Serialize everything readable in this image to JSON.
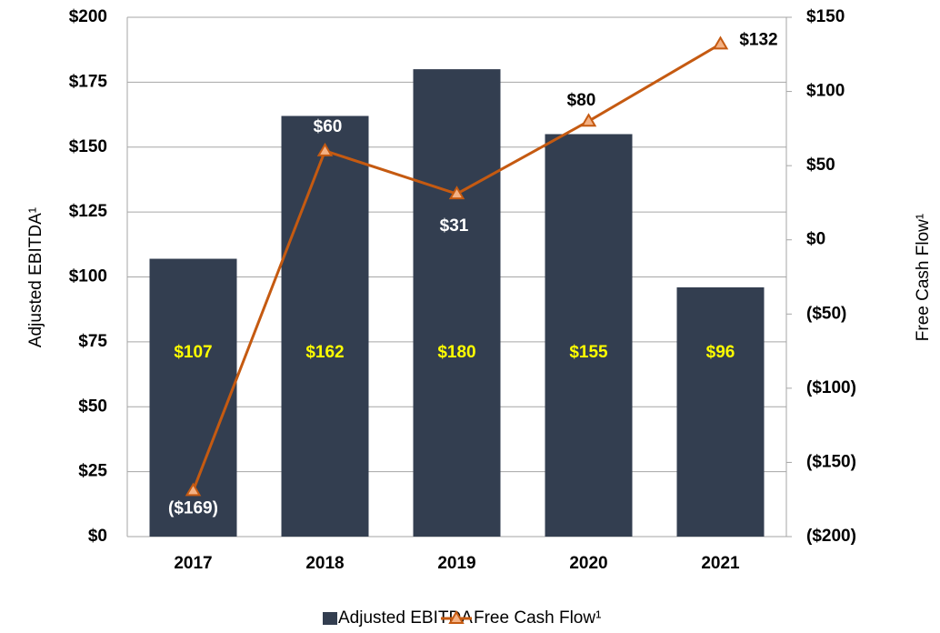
{
  "chart_data": {
    "type": "bar",
    "categories": [
      "2017",
      "2018",
      "2019",
      "2020",
      "2021"
    ],
    "series": [
      {
        "name": "Adjusted EBITDA",
        "type": "bar",
        "color": "#333e50",
        "values": [
          107,
          162,
          180,
          155,
          96
        ],
        "value_labels": [
          "$107",
          "$162",
          "$180",
          "$155",
          "$96"
        ]
      },
      {
        "name": "Free Cash Flow¹",
        "type": "line",
        "axis": "y2",
        "color": "#c55a11",
        "values": [
          -169,
          60,
          31,
          80,
          132
        ],
        "value_labels": [
          "($169)",
          "$60",
          "$31",
          "$80",
          "$132"
        ]
      }
    ],
    "ylabel": "Adjusted EBITDA¹",
    "y2label": "Free Cash Flow¹",
    "ylim": [
      0,
      200
    ],
    "yticks": [
      {
        "value": 0,
        "label": "$0"
      },
      {
        "value": 25,
        "label": "$25"
      },
      {
        "value": 50,
        "label": "$50"
      },
      {
        "value": 75,
        "label": "$75"
      },
      {
        "value": 100,
        "label": "$100"
      },
      {
        "value": 125,
        "label": "$125"
      },
      {
        "value": 150,
        "label": "$150"
      },
      {
        "value": 175,
        "label": "$175"
      },
      {
        "value": 200,
        "label": "$200"
      }
    ],
    "y2lim": [
      -200,
      150
    ],
    "y2ticks": [
      {
        "value": -200,
        "label": "($200)"
      },
      {
        "value": -150,
        "label": "($150)"
      },
      {
        "value": -100,
        "label": "($100)"
      },
      {
        "value": -50,
        "label": "($50)"
      },
      {
        "value": 0,
        "label": "$0"
      },
      {
        "value": 50,
        "label": "$50"
      },
      {
        "value": 100,
        "label": "$100"
      },
      {
        "value": 150,
        "label": "$150"
      }
    ],
    "grid": true,
    "legend": "bottom"
  }
}
